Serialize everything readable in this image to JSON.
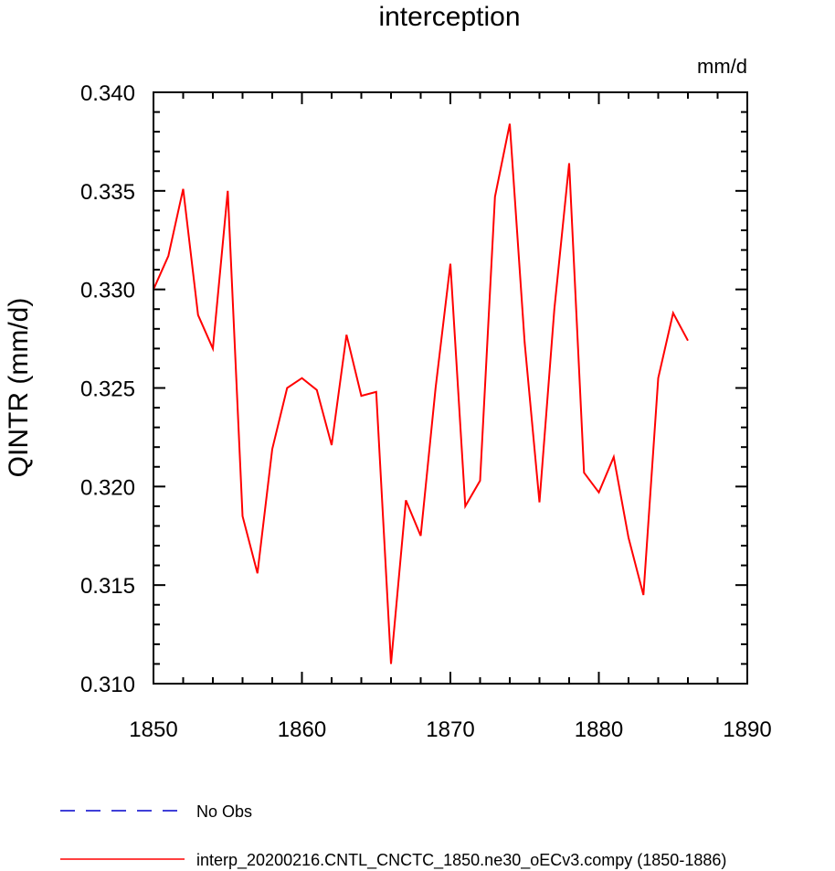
{
  "chart_data": {
    "type": "line",
    "title": "interception",
    "units": "mm/d",
    "ylabel": "QINTR  (mm/d)",
    "xlabel": "",
    "xlim": [
      1850,
      1890
    ],
    "ylim": [
      0.31,
      0.34
    ],
    "x_ticks": [
      1850,
      1860,
      1870,
      1880,
      1890
    ],
    "y_ticks": [
      "0.310",
      "0.315",
      "0.320",
      "0.325",
      "0.330",
      "0.335",
      "0.340"
    ],
    "series": [
      {
        "name": "interp_20200216.CNTL_CNCTC_1850.ne30_oECv3.compy (1850-1886)",
        "color": "#ff0000",
        "style": "solid",
        "x": [
          1850,
          1851,
          1852,
          1853,
          1854,
          1855,
          1856,
          1857,
          1858,
          1859,
          1860,
          1861,
          1862,
          1863,
          1864,
          1865,
          1866,
          1867,
          1868,
          1869,
          1870,
          1871,
          1872,
          1873,
          1874,
          1875,
          1876,
          1877,
          1878,
          1879,
          1880,
          1881,
          1882,
          1883,
          1884,
          1885,
          1886
        ],
        "values": [
          0.33,
          0.3317,
          0.3351,
          0.3287,
          0.327,
          0.335,
          0.3185,
          0.3156,
          0.3219,
          0.325,
          0.3255,
          0.3249,
          0.3221,
          0.3277,
          0.3246,
          0.3248,
          0.311,
          0.3193,
          0.3175,
          0.325,
          0.3313,
          0.319,
          0.3203,
          0.3347,
          0.3384,
          0.3273,
          0.3192,
          0.329,
          0.3364,
          0.3207,
          0.3197,
          0.3215,
          0.3174,
          0.3145,
          0.3255,
          0.3288,
          0.3274
        ]
      }
    ],
    "legend": {
      "position": "bottom-left",
      "entries": [
        {
          "label": "No Obs",
          "color": "#0000cc",
          "style": "dashed"
        },
        {
          "label": "interp_20200216.CNTL_CNCTC_1850.ne30_oECv3.compy (1850-1886)",
          "color": "#ff0000",
          "style": "solid"
        }
      ]
    }
  }
}
